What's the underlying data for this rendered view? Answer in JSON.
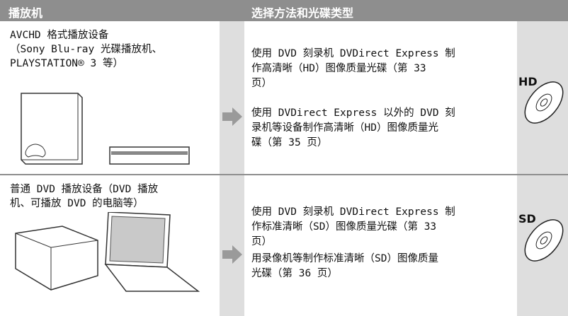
{
  "header": {
    "columns": [
      "播放机",
      "选择方法和光碟类型"
    ]
  },
  "rows": [
    {
      "player": [
        "AVCHD 格式播放设备",
        "（Sony Blu-ray 光碟播放机、",
        "PLAYSTATION® 3 等）"
      ],
      "methods": [
        [
          "使用 DVD 刻录机 DVDirect Express 制",
          "作高清晰（HD）图像质量光碟（第 33",
          "页）"
        ],
        [
          "使用 DVDirect Express 以外的 DVD 刻",
          "录机等设备制作高清晰（HD）图像质量光",
          "碟（第 35 页）"
        ]
      ],
      "disc_label": "HD"
    },
    {
      "player": [
        "普通 DVD 播放设备（DVD 播放",
        "机、可播放 DVD 的电脑等）"
      ],
      "methods": [
        [
          "使用 DVD 刻录机 DVDirect Express 制",
          "作标准清晰（SD）图像质量光碟（第 33",
          "页）"
        ],
        [
          "用录像机等制作标准清晰（SD）图像质量",
          "光碟（第 36 页）"
        ]
      ],
      "disc_label": "SD"
    }
  ]
}
